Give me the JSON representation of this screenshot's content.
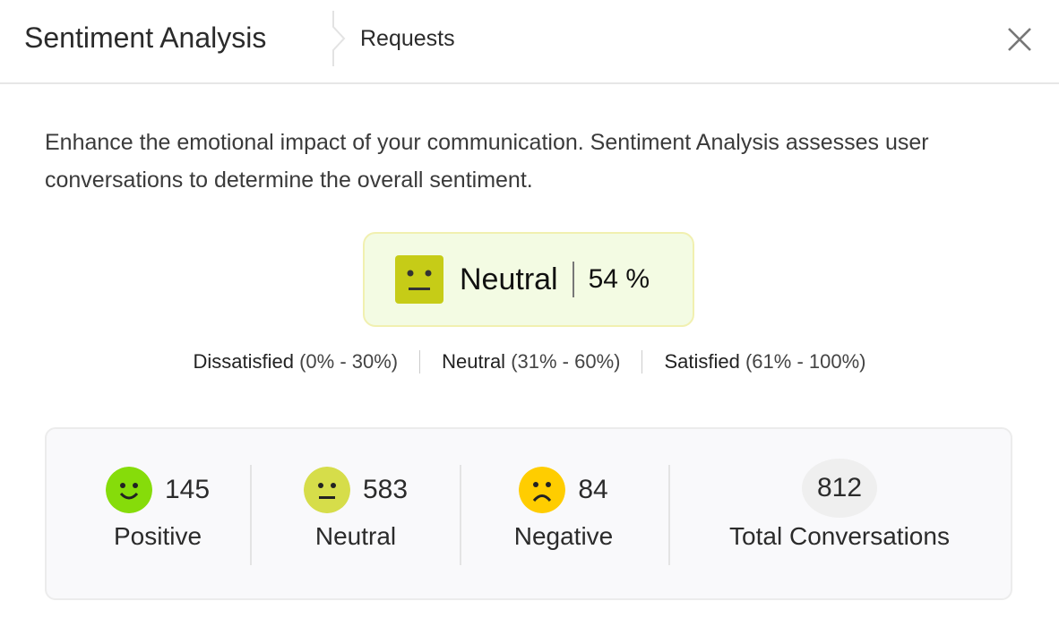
{
  "header": {
    "title": "Sentiment Analysis",
    "breadcrumb": "Requests",
    "close_icon": "close-icon"
  },
  "description": "Enhance the emotional impact of your communication. Sentiment Analysis assesses user conversations to determine the overall sentiment.",
  "overall": {
    "label": "Neutral",
    "percent": "54 %",
    "value": 54,
    "color": "#c6cc17",
    "icon": "neutral-face-icon"
  },
  "ranges": [
    {
      "label": "Dissatisfied",
      "range": "(0% - 30%)"
    },
    {
      "label": "Neutral",
      "range": "(31% - 60%)"
    },
    {
      "label": "Satisfied",
      "range": "(61% - 100%)"
    }
  ],
  "stats": [
    {
      "label": "Positive",
      "count": "145",
      "color": "#86dc0a",
      "icon": "smile-face-icon"
    },
    {
      "label": "Neutral",
      "count": "583",
      "color": "#d6dd4a",
      "icon": "neutral-face-icon"
    },
    {
      "label": "Negative",
      "count": "84",
      "color": "#ffcd00",
      "icon": "sad-face-icon"
    }
  ],
  "total": {
    "label": "Total Conversations",
    "count": "812"
  }
}
